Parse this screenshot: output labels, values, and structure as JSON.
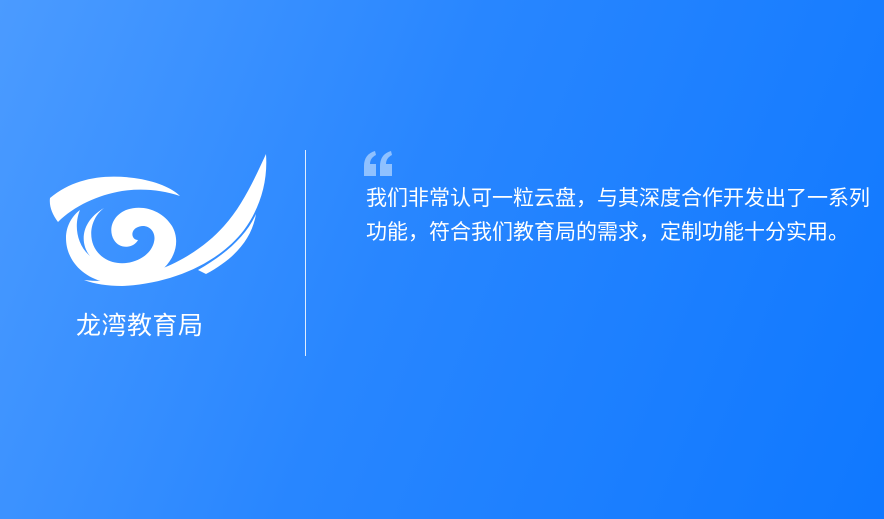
{
  "organization": {
    "name": "龙湾教育局"
  },
  "testimonial": {
    "text": "我们非常认可一粒云盘，与其深度合作开发出了一系列功能，符合我们教育局的需求，定制功能十分实用。"
  },
  "icons": {
    "logo": "longwan-education-logo-icon",
    "quote": "quote-mark-icon"
  },
  "colors": {
    "background_start": "#4b9bff",
    "background_end": "#0f78ff",
    "text": "#ffffff",
    "quote_mark": "#8fc1ff"
  }
}
